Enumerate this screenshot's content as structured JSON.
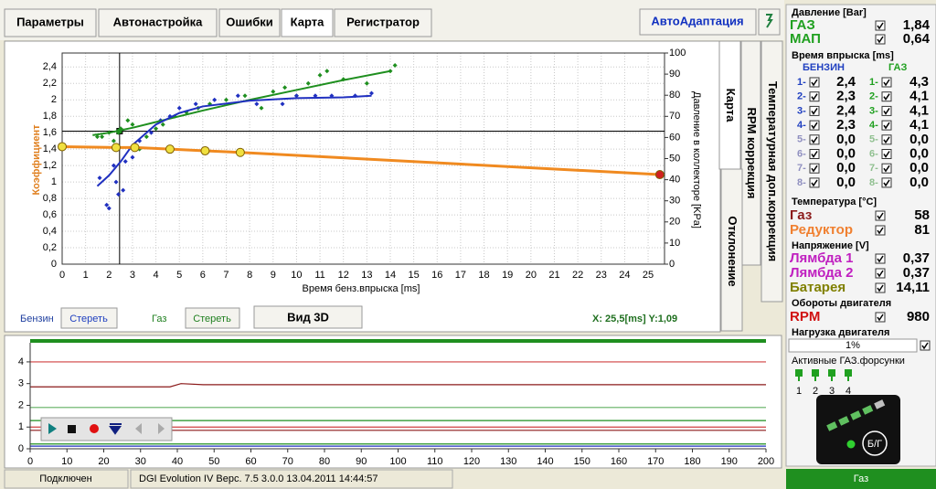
{
  "tabs": [
    "Параметры",
    "Автонастройка",
    "Ошибки",
    "Карта",
    "Регистратор"
  ],
  "auto_button": "АвтоАдаптация",
  "side_tabs": [
    "Карта",
    "RPM коррекция",
    "Температурная доп.коррекция",
    "Отклонение"
  ],
  "map_chart": {
    "type": "scatter",
    "y_label": "Коэффициент",
    "y2_label": "Давление в коллекторе [KPa]",
    "x_label": "Время бенз.впрыска [ms]",
    "xlim": [
      0,
      25.7
    ],
    "ylim": [
      0,
      2.57
    ],
    "y2lim": [
      0,
      100
    ],
    "xticks": [
      0,
      1,
      2,
      3,
      4,
      5,
      6,
      7,
      8,
      9,
      10,
      11,
      12,
      13,
      14,
      15,
      16,
      17,
      18,
      19,
      20,
      21,
      22,
      23,
      24,
      25
    ],
    "yticks": [
      0,
      {
        "value": 0.2,
        "label": "0,2"
      },
      {
        "value": 0.4,
        "label": "0,4"
      },
      {
        "value": 0.6,
        "label": "0,6"
      },
      {
        "value": 0.8,
        "label": "0,8"
      },
      1,
      {
        "value": 1.2,
        "label": "1,2"
      },
      {
        "value": 1.4,
        "label": "1,4"
      },
      {
        "value": 1.6,
        "label": "1,6"
      },
      {
        "value": 1.8,
        "label": "1,8"
      },
      2,
      {
        "value": 2.2,
        "label": "2,2"
      },
      {
        "value": 2.4,
        "label": "2,4"
      }
    ],
    "y2ticks": [
      0,
      10,
      20,
      30,
      40,
      50,
      60,
      70,
      80,
      90,
      100
    ],
    "grid": true,
    "cursor": {
      "x": 2.45,
      "y2": 63
    },
    "series": [
      {
        "type": "scatter",
        "color": "#1f8f1f",
        "x": [
          1.5,
          1.7,
          2.0,
          2.2,
          2.4,
          2.5,
          2.8,
          3.0,
          3.3,
          3.6,
          4.0,
          4.3,
          4.8,
          5.3,
          5.8,
          6.3,
          7.0,
          7.8,
          8.5,
          9.0,
          9.5,
          10.0,
          10.5,
          11.0,
          11.3,
          12.0,
          13.0,
          14.0,
          14.2
        ],
        "values": [
          1.55,
          1.55,
          1.6,
          1.5,
          1.6,
          1.65,
          1.75,
          1.7,
          1.4,
          1.55,
          1.65,
          1.7,
          1.8,
          1.85,
          1.9,
          1.95,
          2.0,
          2.05,
          1.9,
          2.1,
          2.15,
          2.05,
          2.2,
          2.3,
          2.35,
          2.25,
          2.2,
          2.35,
          2.42
        ]
      },
      {
        "type": "scatter",
        "color": "#2030c0",
        "x": [
          1.6,
          1.9,
          2.0,
          2.2,
          2.3,
          2.4,
          2.6,
          2.7,
          3.0,
          3.3,
          3.8,
          4.2,
          4.6,
          5.0,
          5.7,
          6.5,
          7.5,
          8.3,
          9.4,
          10.0,
          10.8,
          11.5,
          12.5,
          13.2
        ],
        "values": [
          1.05,
          0.72,
          0.68,
          1.2,
          1.0,
          0.85,
          0.9,
          1.25,
          1.3,
          1.5,
          1.6,
          1.75,
          1.8,
          1.9,
          1.95,
          2.0,
          2.05,
          1.95,
          1.95,
          2.05,
          2.05,
          2.05,
          2.05,
          2.08
        ]
      },
      {
        "type": "line",
        "color": "#1f8f1f",
        "width": 2,
        "x": [
          1.3,
          2,
          3,
          4,
          5,
          6,
          8,
          10,
          12,
          14
        ],
        "values": [
          1.57,
          1.6,
          1.66,
          1.73,
          1.8,
          1.87,
          2.0,
          2.12,
          2.24,
          2.35
        ]
      },
      {
        "type": "line",
        "color": "#2030c0",
        "width": 2,
        "x": [
          1.5,
          2,
          2.5,
          3,
          4,
          5,
          6,
          8,
          10,
          12,
          13.2
        ],
        "values": [
          0.95,
          1.08,
          1.25,
          1.45,
          1.7,
          1.84,
          1.92,
          1.99,
          2.02,
          2.03,
          2.05
        ]
      },
      {
        "type": "line",
        "color": "#f08a20",
        "width": 3,
        "x": [
          0,
          2.3,
          3.1,
          4.6,
          6.1,
          7.6,
          25.5
        ],
        "values": [
          1.43,
          1.42,
          1.42,
          1.4,
          1.38,
          1.36,
          1.09
        ],
        "marker_colors": [
          "#f0e040",
          "#f0e040",
          "#f0e040",
          "#f0e040",
          "#f0e040",
          "#f0e040",
          "#d02020"
        ]
      }
    ]
  },
  "map_controls": {
    "petrol": "Бензин",
    "clear_petrol": "Стереть",
    "gas": "Газ",
    "clear_gas": "Стереть",
    "view3d": "Вид 3D",
    "readout": "X: 25,5[ms] Y:1,09"
  },
  "logger_chart": {
    "type": "line",
    "xlim": [
      0,
      200
    ],
    "ylim": [
      0,
      4.88
    ],
    "xticks": [
      0,
      10,
      20,
      30,
      40,
      50,
      60,
      70,
      80,
      90,
      100,
      110,
      120,
      130,
      140,
      150,
      160,
      170,
      180,
      190,
      200
    ],
    "yticks": [
      0,
      1,
      2,
      3,
      4
    ],
    "series": [
      {
        "color": "#d04040",
        "x": [
          0,
          200
        ],
        "values": [
          4,
          4
        ]
      },
      {
        "color": "#8b1a1a",
        "x": [
          0,
          38,
          41,
          47,
          200
        ],
        "values": [
          2.85,
          2.85,
          3.0,
          2.95,
          2.95
        ]
      },
      {
        "color": "#60b060",
        "x": [
          0,
          200
        ],
        "values": [
          1.9,
          1.9
        ]
      },
      {
        "color": "#1f8f1f",
        "x": [
          0,
          200
        ],
        "values": [
          1.3,
          1.3
        ]
      },
      {
        "color": "#d04040",
        "x": [
          0,
          200
        ],
        "values": [
          1.0,
          1.0
        ]
      },
      {
        "color": "#8b1a1a",
        "x": [
          0,
          200
        ],
        "values": [
          0.85,
          0.85
        ]
      },
      {
        "color": "#1f8f1f",
        "x": [
          0,
          200
        ],
        "values": [
          0.22,
          0.22
        ]
      },
      {
        "color": "#2030c0",
        "x": [
          0,
          200
        ],
        "values": [
          0.12,
          0.12
        ]
      }
    ]
  },
  "pressure": {
    "title": "Давление [Bar]",
    "rows": [
      {
        "label": "ГАЗ",
        "value": "1,84",
        "color": "#20a020"
      },
      {
        "label": "МАП",
        "value": "0,64",
        "color": "#20a020"
      }
    ]
  },
  "injection": {
    "title": "Время впрыска [ms]",
    "petrol_header": "БЕНЗИН",
    "gas_header": "ГАЗ",
    "rows": [
      {
        "label": "1-",
        "petrol": "2,4",
        "gas_label": "1-",
        "gas": "4,3"
      },
      {
        "label": "2-",
        "petrol": "2,3",
        "gas_label": "2-",
        "gas": "4,1"
      },
      {
        "label": "3-",
        "petrol": "2,4",
        "gas_label": "3-",
        "gas": "4,1"
      },
      {
        "label": "4-",
        "petrol": "2,3",
        "gas_label": "4-",
        "gas": "4,1"
      },
      {
        "label": "5-",
        "petrol": "0,0",
        "gas_label": "5-",
        "gas": "0,0"
      },
      {
        "label": "6-",
        "petrol": "0,0",
        "gas_label": "6-",
        "gas": "0,0"
      },
      {
        "label": "7-",
        "petrol": "0,0",
        "gas_label": "7-",
        "gas": "0,0"
      },
      {
        "label": "8-",
        "petrol": "0,0",
        "gas_label": "8-",
        "gas": "0,0"
      }
    ]
  },
  "temperature": {
    "title": "Температура [°C]",
    "rows": [
      {
        "label": "Газ",
        "value": "58",
        "color": "#8b1a1a"
      },
      {
        "label": "Редуктор",
        "value": "81",
        "color": "#f08030"
      }
    ]
  },
  "voltage": {
    "title": "Напряжение [V]",
    "rows": [
      {
        "label": "Лямбда 1",
        "value": "0,37",
        "color": "#c020c0"
      },
      {
        "label": "Лямбда 2",
        "value": "0,37",
        "color": "#c020c0"
      },
      {
        "label": "Батарея",
        "value": "14,11",
        "color": "#808000"
      }
    ]
  },
  "rpm": {
    "title": "Обороты двигателя",
    "label": "RPM",
    "value": "980"
  },
  "load": {
    "title": "Нагрузка двигателя",
    "value": "1%"
  },
  "injectors": {
    "title": "Активные ГАЗ.форсунки",
    "labels": [
      "1",
      "2",
      "3",
      "4"
    ]
  },
  "indicator_label": "Б/Г",
  "status": [
    "Подключен",
    "DGI Evolution IV  Верс. 7.5  3.0.0   13.04.2011 14:44:57",
    "Газ"
  ]
}
